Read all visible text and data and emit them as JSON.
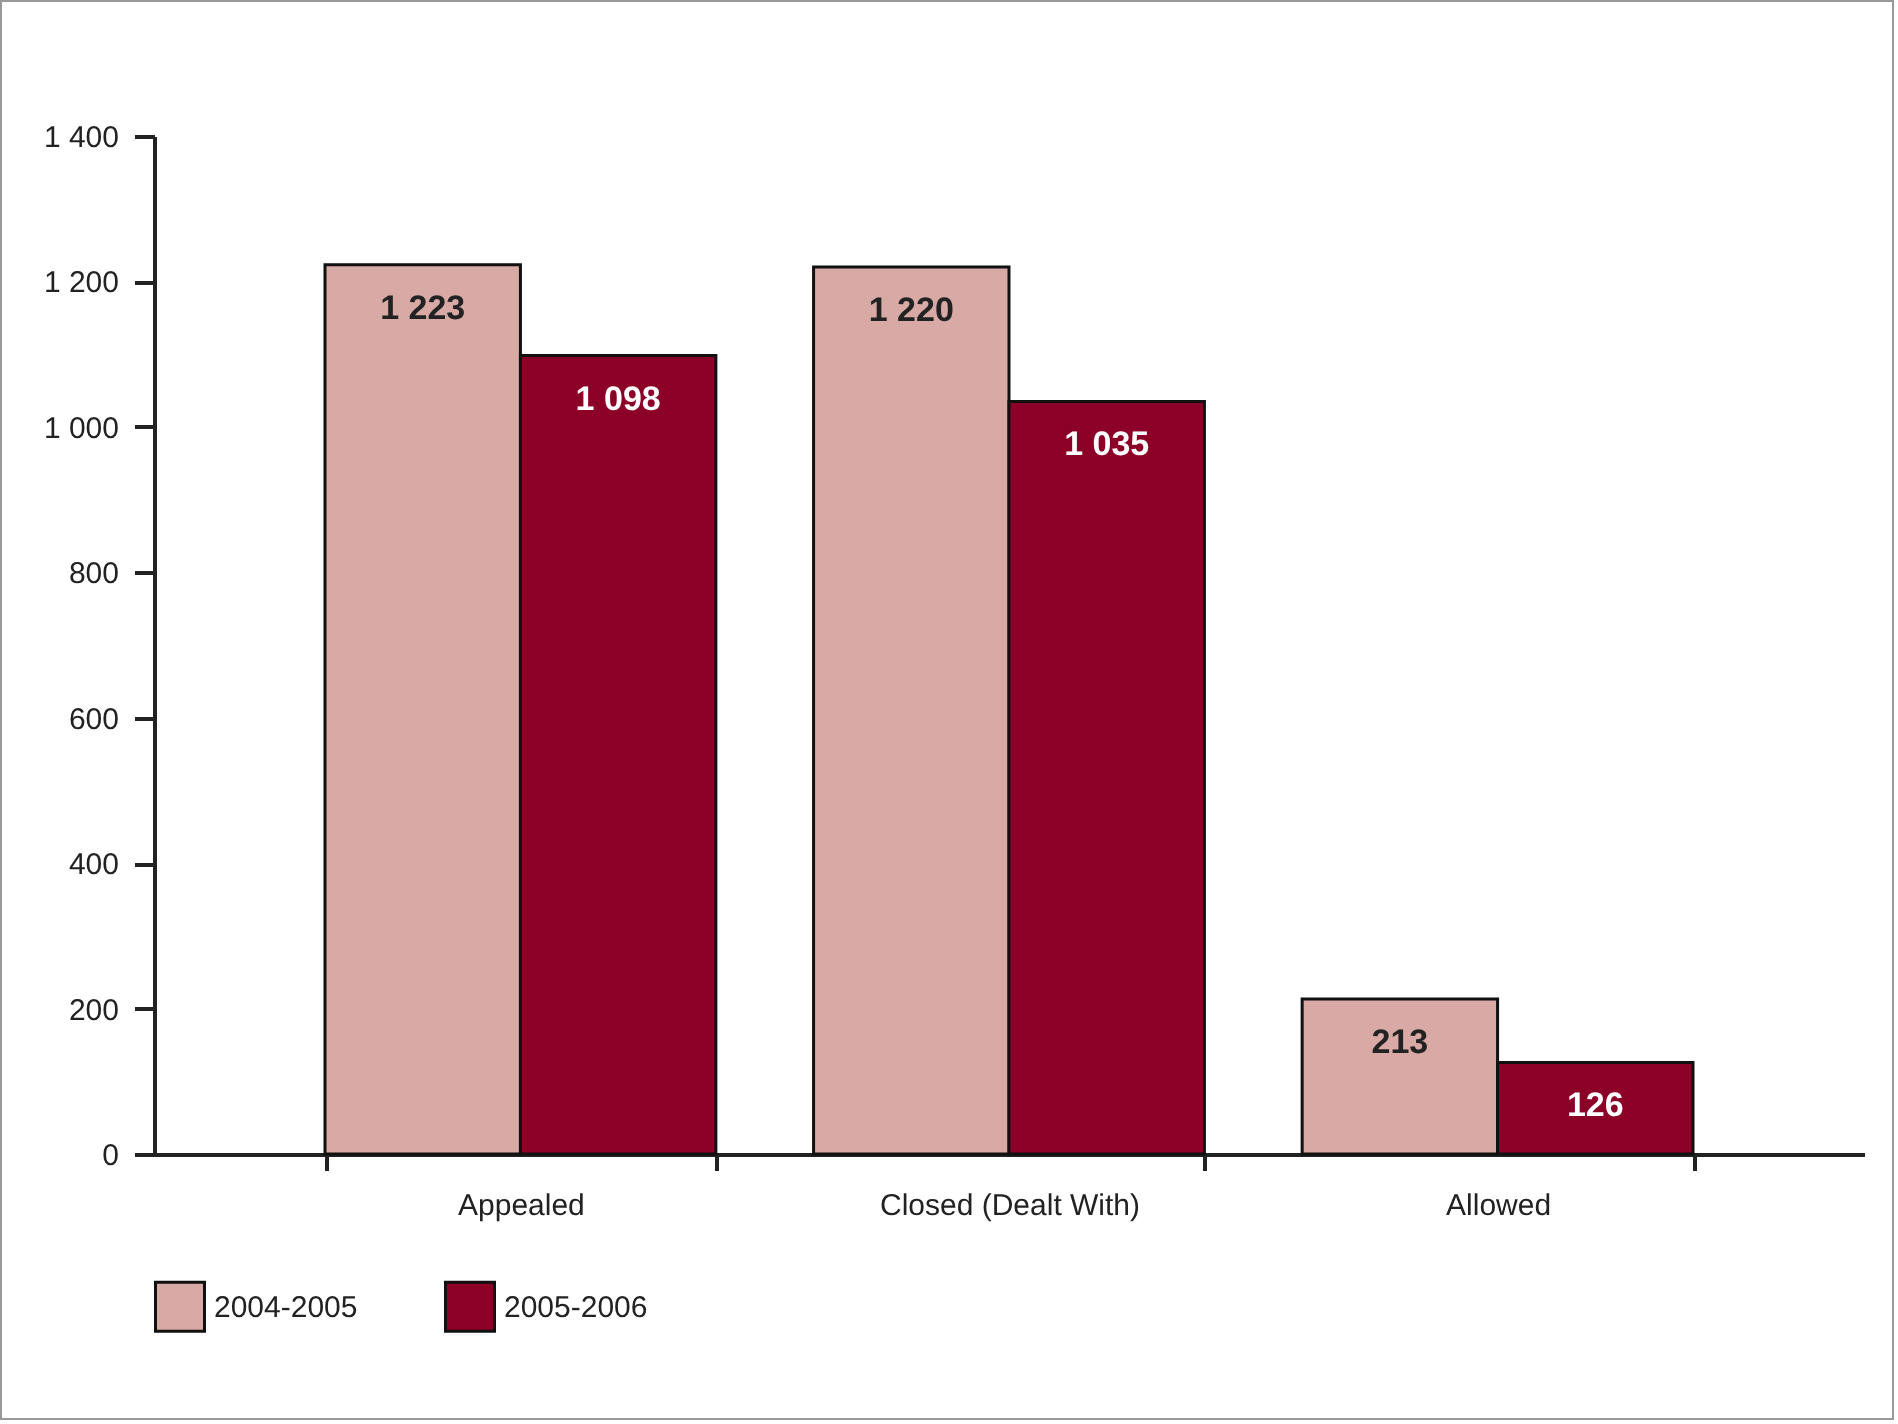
{
  "chart_data": {
    "type": "bar",
    "categories": [
      "Appealed",
      "Closed (Dealt With)",
      "Allowed"
    ],
    "series": [
      {
        "name": "2004-2005",
        "color": "#d8a9a5",
        "values": [
          1223,
          1220,
          213
        ]
      },
      {
        "name": "2005-2006",
        "color": "#8c0027",
        "values": [
          1098,
          1035,
          126
        ]
      }
    ],
    "ylim": [
      0,
      1400
    ],
    "yticks": [
      0,
      200,
      400,
      600,
      800,
      1000,
      1200,
      1400
    ],
    "grid": false,
    "legend": "bottom",
    "data_labels": true
  }
}
